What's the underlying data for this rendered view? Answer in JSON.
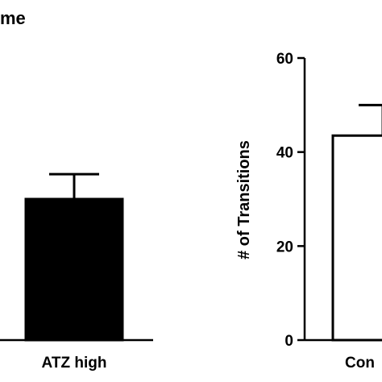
{
  "chart_data": [
    {
      "type": "bar",
      "title": "me",
      "categories": [
        "ATZ high"
      ],
      "values": [
        30
      ],
      "errors": [
        5.3
      ],
      "color": "#000000",
      "ylim": [
        0,
        60
      ]
    },
    {
      "type": "bar",
      "y_label": "# of Transitions",
      "categories": [
        "Con"
      ],
      "values": [
        43.5
      ],
      "errors": [
        6.5
      ],
      "color": "#ffffff",
      "ylim": [
        0,
        60
      ],
      "yticks": [
        0,
        20,
        40,
        60
      ]
    }
  ]
}
